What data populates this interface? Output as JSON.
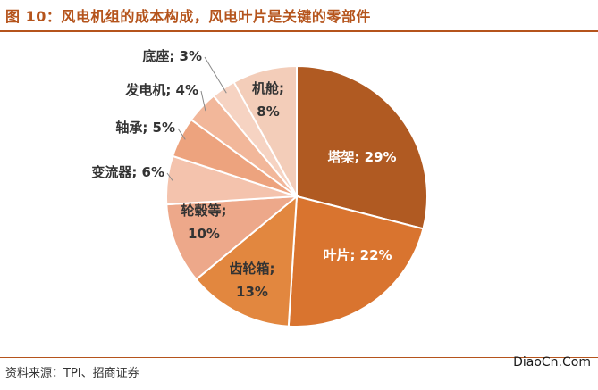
{
  "title": "图 10：风电机组的成本构成，风电叶片是关键的零部件",
  "source": "资料来源：TPI、招商证券",
  "watermark": "DiaoCn.Com",
  "chart_data": {
    "type": "pie",
    "slices": [
      {
        "name": "塔架",
        "value": 29,
        "label": "塔架; 29%",
        "color": "#b05a22"
      },
      {
        "name": "叶片",
        "value": 22,
        "label": "叶片; 22%",
        "color": "#d9742f"
      },
      {
        "name": "齿轮箱",
        "value": 13,
        "label": "齿轮箱; 13%",
        "color": "#e2873f"
      },
      {
        "name": "轮毂等",
        "value": 10,
        "label": "轮毂等; 10%",
        "color": "#eda88a"
      },
      {
        "name": "变流器",
        "value": 6,
        "label": "变流器; 6%",
        "color": "#f4c3ad"
      },
      {
        "name": "轴承",
        "value": 5,
        "label": "轴承; 5%",
        "color": "#eda37e"
      },
      {
        "name": "发电机",
        "value": 4,
        "label": "发电机; 4%",
        "color": "#f2b79a"
      },
      {
        "name": "底座",
        "value": 3,
        "label": "底座; 3%",
        "color": "#f6d3c2"
      },
      {
        "name": "机舱",
        "value": 8,
        "label": "机舱; 8%",
        "color": "#f3cdb9"
      }
    ]
  }
}
